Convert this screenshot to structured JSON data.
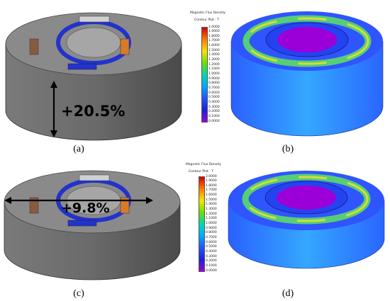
{
  "captions": [
    "(a)",
    "(b)",
    "(c)",
    "(d)"
  ],
  "annotations": {
    "height_change": "+20.5%",
    "diameter_change": "+9.8%"
  },
  "legend_b": {
    "title": "Magnetic Flux Density",
    "subtitle": "Contour Plot : T",
    "ticks": [
      "2.0000",
      "1.9000",
      "1.8000",
      "1.7000",
      "1.6000",
      "1.5000",
      "1.4000",
      "1.3000",
      "1.2000",
      "1.1000",
      "1.0000",
      "0.9000",
      "0.8000",
      "0.7000",
      "0.6000",
      "0.5000",
      "0.4000",
      "0.3000",
      "0.2000",
      "0.1000",
      "0.0000"
    ]
  },
  "legend_d": {
    "title": "Magnetic Flux Density",
    "subtitle": "Contour Plot : T",
    "ticks": [
      "2.0000",
      "1.9000",
      "1.8000",
      "1.7000",
      "1.6000",
      "1.5000",
      "1.4000",
      "1.3000",
      "1.2000",
      "1.1000",
      "1.0000",
      "0.9000",
      "0.8000",
      "0.7000",
      "0.6000",
      "0.5000",
      "0.4000",
      "0.3000",
      "0.2000",
      "0.1000",
      "0.0000"
    ]
  },
  "colors": {
    "body_gray": "#6e6e6e",
    "ring_blue": "#2233cc",
    "legend_top": "#d40000",
    "legend_bottom": "#9b00d8"
  }
}
